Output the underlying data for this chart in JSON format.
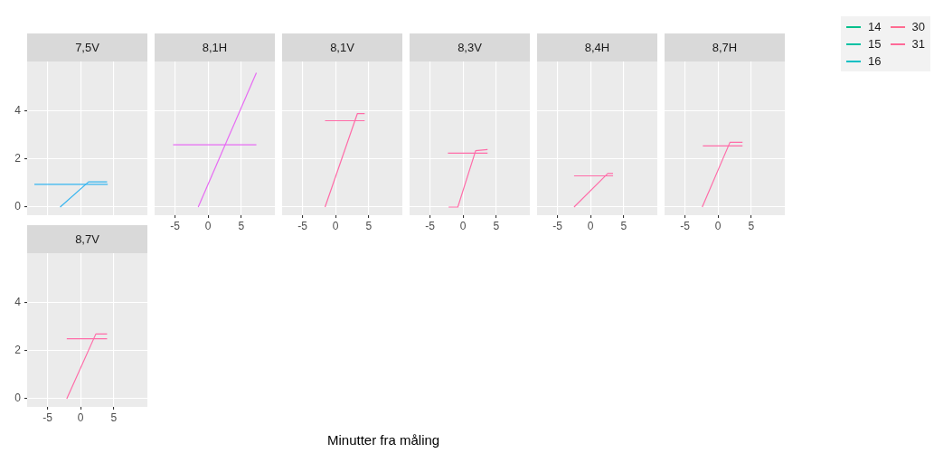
{
  "chart_data": [
    {
      "type": "line",
      "title": "7,5V",
      "xlim": [
        -8.1,
        10.1
      ],
      "ylim": [
        -0.34,
        6.07
      ],
      "xticks": [
        -5,
        0,
        5
      ],
      "yticks": [
        0,
        2,
        4
      ],
      "grid": true,
      "tick_labels": "y",
      "series": [
        {
          "color": "#35b5f0",
          "x": [
            -3.1,
            1.2,
            4
          ],
          "values": [
            0,
            1.05,
            1.05
          ]
        },
        {
          "color": "#35b5f0",
          "x": [
            -7,
            4.1
          ],
          "values": [
            0.95,
            0.95
          ]
        }
      ]
    },
    {
      "type": "line",
      "title": "8,1H",
      "xlim": [
        -8.1,
        10.1
      ],
      "ylim": [
        -0.34,
        6.07
      ],
      "xticks": [
        -5,
        0,
        5
      ],
      "yticks": [
        0,
        2,
        4
      ],
      "grid": true,
      "tick_labels": "x",
      "series": [
        {
          "color": "#e76bf3",
          "x": [
            -1.5,
            7.3
          ],
          "values": [
            0,
            5.6
          ]
        },
        {
          "color": "#e76bf3",
          "x": [
            -5.3,
            7.3
          ],
          "values": [
            2.6,
            2.6
          ]
        }
      ]
    },
    {
      "type": "line",
      "title": "8,1V",
      "xlim": [
        -8.1,
        10.1
      ],
      "ylim": [
        -0.34,
        6.07
      ],
      "xticks": [
        -5,
        0,
        5
      ],
      "yticks": [
        0,
        2,
        4
      ],
      "grid": true,
      "tick_labels": "x",
      "series": [
        {
          "color": "#ff6ca8",
          "x": [
            -1.6,
            3.3,
            4.4
          ],
          "values": [
            0,
            3.9,
            3.9
          ]
        },
        {
          "color": "#ff6ca8",
          "x": [
            -1.6,
            4.4
          ],
          "values": [
            3.6,
            3.6
          ]
        }
      ]
    },
    {
      "type": "line",
      "title": "8,3V",
      "xlim": [
        -8.1,
        10.1
      ],
      "ylim": [
        -0.34,
        6.07
      ],
      "xticks": [
        -5,
        0,
        5
      ],
      "yticks": [
        0,
        2,
        4
      ],
      "grid": true,
      "tick_labels": "x",
      "series": [
        {
          "color": "#ff6ca8",
          "x": [
            -2.2,
            -0.8,
            1.9,
            3.7
          ],
          "values": [
            0,
            0,
            2.35,
            2.4
          ]
        },
        {
          "color": "#ff6ca8",
          "x": [
            -2.3,
            3.7
          ],
          "values": [
            2.25,
            2.25
          ]
        }
      ]
    },
    {
      "type": "line",
      "title": "8,4H",
      "xlim": [
        -8.1,
        10.1
      ],
      "ylim": [
        -0.34,
        6.07
      ],
      "xticks": [
        -5,
        0,
        5
      ],
      "yticks": [
        0,
        2,
        4
      ],
      "grid": true,
      "tick_labels": "x",
      "series": [
        {
          "color": "#ff6ca8",
          "x": [
            -2.5,
            2.6,
            3.4
          ],
          "values": [
            0,
            1.4,
            1.4
          ]
        },
        {
          "color": "#ff6ca8",
          "x": [
            -2.5,
            3.4
          ],
          "values": [
            1.3,
            1.3
          ]
        }
      ]
    },
    {
      "type": "line",
      "title": "8,7H",
      "xlim": [
        -8.1,
        10.1
      ],
      "ylim": [
        -0.34,
        6.07
      ],
      "xticks": [
        -5,
        0,
        5
      ],
      "yticks": [
        0,
        2,
        4
      ],
      "grid": true,
      "tick_labels": "x",
      "series": [
        {
          "color": "#ff6ca8",
          "x": [
            -2.4,
            1.8,
            3.7
          ],
          "values": [
            0,
            2.7,
            2.7
          ]
        },
        {
          "color": "#ff6ca8",
          "x": [
            -2.3,
            3.7
          ],
          "values": [
            2.55,
            2.55
          ]
        }
      ]
    },
    {
      "type": "line",
      "title": "8,7V",
      "xlim": [
        -8.1,
        10.1
      ],
      "ylim": [
        -0.34,
        6.07
      ],
      "xticks": [
        -5,
        0,
        5
      ],
      "yticks": [
        0,
        2,
        4
      ],
      "grid": true,
      "series": [
        {
          "color": "#ff6ca8",
          "x": [
            -2.1,
            2.3,
            4
          ],
          "values": [
            0,
            2.7,
            2.7
          ]
        },
        {
          "color": "#ff6ca8",
          "x": [
            -2.1,
            4
          ],
          "values": [
            2.5,
            2.5
          ]
        }
      ]
    },
    {
      "type": "other",
      "legend": "top right",
      "annotations": [
        "Minutter fra måling"
      ],
      "series": [
        {
          "name": "14",
          "color": "#00c08b"
        },
        {
          "name": "15",
          "color": "#00c1a3"
        },
        {
          "name": "16",
          "color": "#00bfc4"
        },
        {
          "name": "30",
          "color": "#ff6c91"
        },
        {
          "name": "31",
          "color": "#ff6a98"
        }
      ]
    }
  ]
}
